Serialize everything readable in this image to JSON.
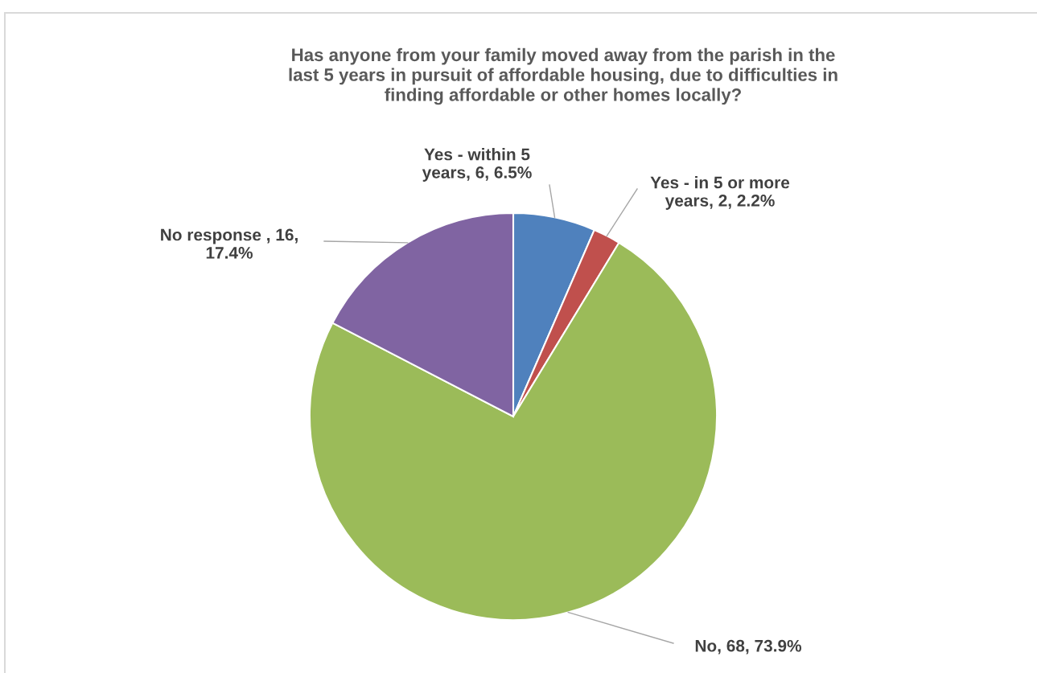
{
  "chart_data": {
    "type": "pie",
    "title": "Has anyone from your family moved away from the parish in the\nlast 5 years in pursuit of affordable housing, due to difficulties in\nfinding affordable or other homes locally?",
    "categories": [
      "Yes - within 5\nyears",
      "Yes - in 5 or more\nyears",
      "No",
      "No response "
    ],
    "values": [
      6,
      2,
      68,
      16
    ],
    "colors": [
      "#4f81bd",
      "#c0504d",
      "#9bbb59",
      "#8064a2"
    ],
    "value_labels": [
      "6, 6.5%",
      "2, 2.2%",
      "68, 73.9%",
      "16,\n17.4%"
    ],
    "legend": false
  }
}
